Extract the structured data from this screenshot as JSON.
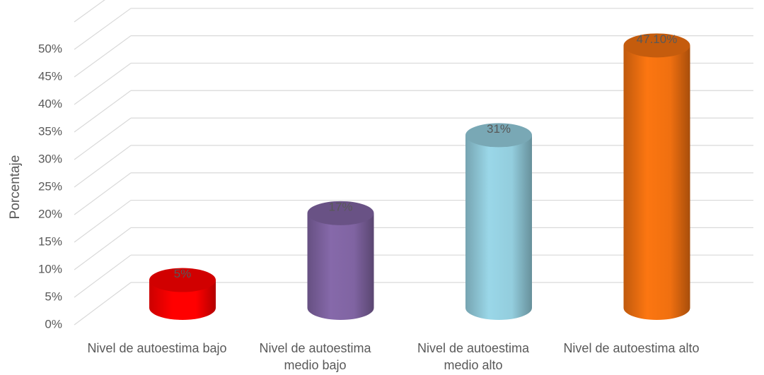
{
  "chart_data": {
    "type": "bar3d",
    "y_axis_label": "Porcentaje",
    "categories": [
      "Nivel de autoestima bajo",
      "Nivel de autoestima medio bajo",
      "Nivel de autoestima medio alto",
      "Nivel de autoestima alto"
    ],
    "values": [
      5,
      17,
      31,
      47.1
    ],
    "value_labels": [
      "5%",
      "17%",
      "31%",
      "47.10%"
    ],
    "colors": [
      "#ff0000",
      "#8064a2",
      "#93cddd",
      "#f07010"
    ],
    "ylim": [
      0,
      55
    ],
    "yticks": [
      {
        "value": 0,
        "label": "0%"
      },
      {
        "value": 5,
        "label": "5%"
      },
      {
        "value": 10,
        "label": "10%"
      },
      {
        "value": 15,
        "label": "15%"
      },
      {
        "value": 20,
        "label": "20%"
      },
      {
        "value": 25,
        "label": "25%"
      },
      {
        "value": 30,
        "label": "30%"
      },
      {
        "value": 35,
        "label": "35%"
      },
      {
        "value": 40,
        "label": "40%"
      },
      {
        "value": 45,
        "label": "45%"
      },
      {
        "value": 50,
        "label": "50%"
      }
    ],
    "grid": true
  }
}
